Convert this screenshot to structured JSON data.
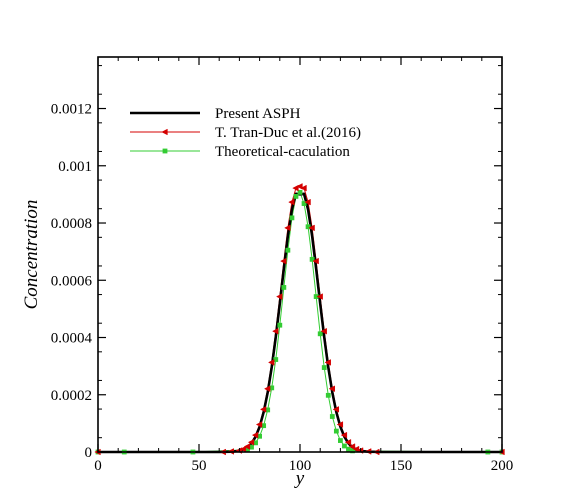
{
  "chart_data": {
    "type": "line",
    "title": "",
    "xlabel": "y",
    "ylabel": "Concentration",
    "xlim": [
      0,
      200
    ],
    "ylim": [
      0,
      0.00138
    ],
    "x_ticks": [
      0,
      50,
      100,
      150,
      200
    ],
    "x_tick_labels": [
      "0",
      "50",
      "100",
      "150",
      "200"
    ],
    "y_ticks": [
      0,
      0.0002,
      0.0004,
      0.0006,
      0.0008,
      0.001,
      0.0012
    ],
    "y_tick_labels": [
      "0",
      "0.0002",
      "0.0004",
      "0.0006",
      "0.0008",
      "0.001",
      "0.0012"
    ],
    "grid": false,
    "legend_position": "top-left",
    "series": [
      {
        "name": "Present ASPH",
        "style": "line",
        "color": "#000000",
        "x": [
          0,
          60,
          66,
          70,
          72,
          74,
          76,
          78,
          80,
          82,
          84,
          86,
          88,
          90,
          92,
          94,
          96,
          98,
          100,
          102,
          104,
          106,
          108,
          110,
          112,
          114,
          116,
          118,
          120,
          122,
          124,
          126,
          128,
          130,
          134,
          140,
          200
        ],
        "values": [
          0,
          0,
          1e-06,
          4e-06,
          8e-06,
          1.6e-05,
          3e-05,
          5.3e-05,
          8.8e-05,
          0.000139,
          0.000208,
          0.000296,
          0.000401,
          0.000518,
          0.00064,
          0.000755,
          0.000847,
          0.000902,
          0.0009,
          0.000902,
          0.000847,
          0.000755,
          0.00064,
          0.000518,
          0.000401,
          0.000296,
          0.000208,
          0.000139,
          8.8e-05,
          5.3e-05,
          3e-05,
          1.6e-05,
          8e-06,
          4e-06,
          1e-06,
          0,
          0
        ]
      },
      {
        "name": "T. Tran-Duc et al.(2016)",
        "style": "line+triangle",
        "color": "#d40000",
        "x": [
          0,
          62,
          66,
          70,
          72,
          74,
          76,
          78,
          80,
          82,
          84,
          86,
          88,
          90,
          92,
          94,
          96,
          98,
          100,
          102,
          104,
          106,
          108,
          110,
          112,
          114,
          116,
          118,
          120,
          122,
          124,
          126,
          128,
          130,
          134,
          138,
          200
        ],
        "values": [
          0,
          0,
          2e-06,
          5e-06,
          1e-05,
          1.9e-05,
          3.4e-05,
          5.9e-05,
          9.6e-05,
          0.000149,
          0.000221,
          0.000313,
          0.000422,
          0.000543,
          0.000667,
          0.000783,
          0.000873,
          0.000922,
          0.000928,
          0.000922,
          0.000873,
          0.000783,
          0.000667,
          0.000543,
          0.000422,
          0.000313,
          0.000221,
          0.000149,
          9.6e-05,
          5.9e-05,
          3.4e-05,
          1.9e-05,
          1e-05,
          5e-06,
          2e-06,
          0,
          0
        ]
      },
      {
        "name": "Theoretical-caculation",
        "style": "line+square",
        "color": "#33cc33",
        "x": [
          0,
          13,
          47,
          74,
          76,
          78,
          80,
          82,
          84,
          86,
          88,
          90,
          92,
          94,
          96,
          98,
          100,
          102,
          104,
          106,
          108,
          110,
          112,
          114,
          116,
          118,
          120,
          122,
          124,
          126,
          193,
          200
        ],
        "values": [
          0,
          0,
          0,
          8e-06,
          1.7e-05,
          3.2e-05,
          5.5e-05,
          9.2e-05,
          0.000147,
          0.000224,
          0.000323,
          0.000443,
          0.000575,
          0.000705,
          0.000818,
          0.000893,
          0.000907,
          0.000868,
          0.000787,
          0.000673,
          0.000543,
          0.000413,
          0.000295,
          0.000198,
          0.000124,
          7.3e-05,
          4e-05,
          2.1e-05,
          1e-05,
          4e-06,
          0,
          0
        ]
      }
    ]
  }
}
